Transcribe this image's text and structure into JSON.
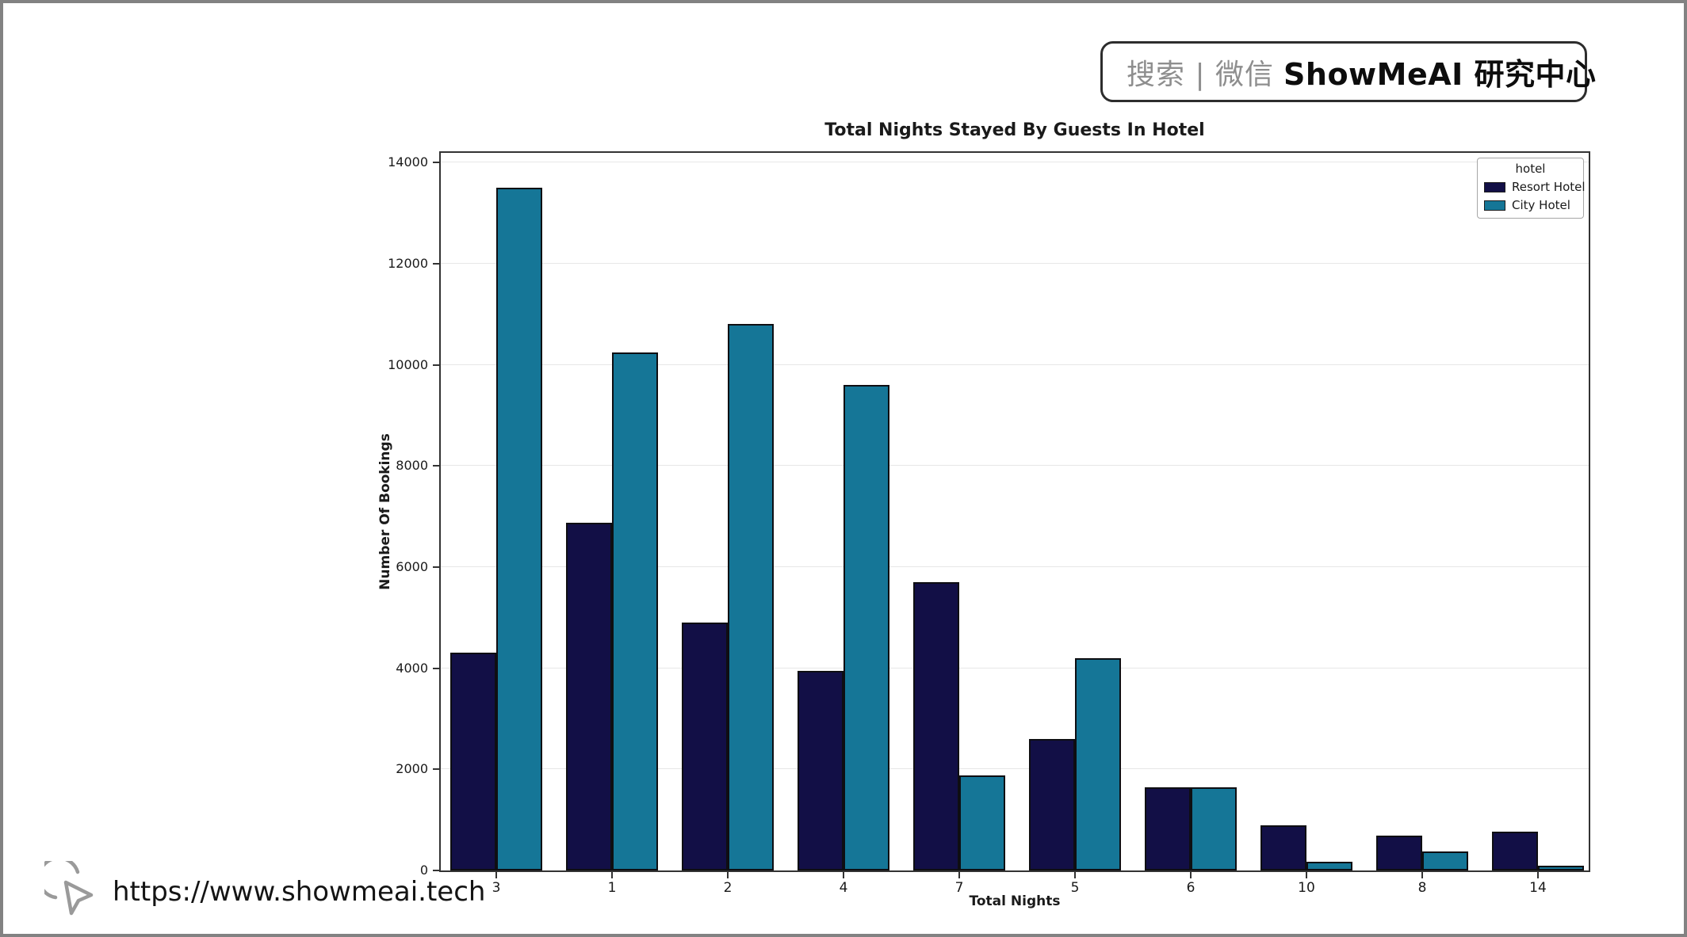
{
  "badge": {
    "search_text": "搜索 | 微信",
    "brand_text": "ShowMeAI 研究中心"
  },
  "footer": {
    "url": "https://www.showmeai.tech"
  },
  "chart_data": {
    "type": "bar",
    "title": "Total Nights Stayed By Guests In Hotel",
    "xlabel": "Total Nights",
    "ylabel": "Number Of Bookings",
    "categories": [
      "3",
      "1",
      "2",
      "4",
      "7",
      "5",
      "6",
      "10",
      "8",
      "14"
    ],
    "series": [
      {
        "name": "Resort Hotel",
        "color": "#120f46",
        "values": [
          4300,
          6880,
          4900,
          3950,
          5700,
          2600,
          1640,
          890,
          690,
          770
        ]
      },
      {
        "name": "City Hotel",
        "color": "#157697",
        "values": [
          13500,
          10250,
          10800,
          9600,
          1880,
          4200,
          1650,
          180,
          370,
          90
        ]
      }
    ],
    "ylim": [
      0,
      14190
    ],
    "yticks": [
      0,
      2000,
      4000,
      6000,
      8000,
      10000,
      12000,
      14000
    ],
    "legend_title": "hotel",
    "legend_position": "upper right",
    "grid": "horizontal",
    "bar_edge_color": "#0e0e12"
  }
}
